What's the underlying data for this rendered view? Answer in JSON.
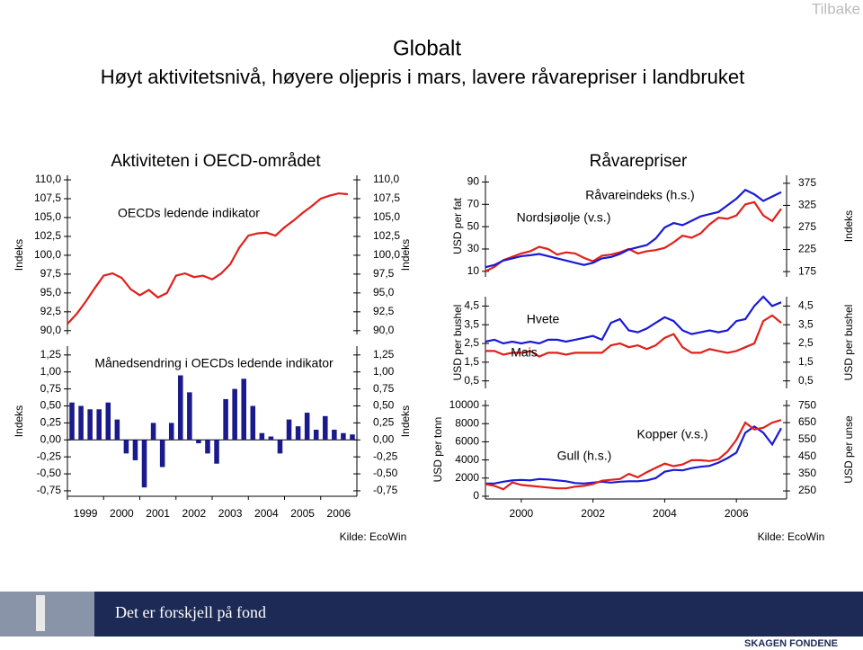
{
  "header": {
    "button": "Tilbake",
    "title": "Globalt",
    "subtitle": "Høyt aktivitetsnivå, høyere oljepris i mars, lavere råvarepriser i landbruket"
  },
  "panels": [
    "Aktiviteten i OECD-området",
    "Råvarepriser"
  ],
  "chart_data": [
    {
      "type": "line",
      "ylabel": "Indeks",
      "y2label": "Indeks",
      "mirror_yticks": true,
      "xlim": [
        1999,
        2007
      ],
      "ylim": [
        89.5,
        110.6
      ],
      "yticks": [
        {
          "value": 90,
          "label": "90,0"
        },
        {
          "value": 92.5,
          "label": "92,5"
        },
        {
          "value": 95,
          "label": "95,0"
        },
        {
          "value": 97.5,
          "label": "97,5"
        },
        {
          "value": 100,
          "label": "100,0"
        },
        {
          "value": 102.5,
          "label": "102,5"
        },
        {
          "value": 105,
          "label": "105,0"
        },
        {
          "value": 107.5,
          "label": "107,5"
        },
        {
          "value": 110,
          "label": "110,0"
        }
      ],
      "x": [
        1999,
        1999.25,
        1999.5,
        1999.75,
        2000,
        2000.25,
        2000.5,
        2000.75,
        2001,
        2001.25,
        2001.5,
        2001.75,
        2002,
        2002.25,
        2002.5,
        2002.75,
        2003,
        2003.25,
        2003.5,
        2003.75,
        2004,
        2004.25,
        2004.5,
        2004.75,
        2005,
        2005.25,
        2005.5,
        2005.75,
        2006,
        2006.25,
        2006.5,
        2006.75
      ],
      "series": [
        {
          "name": "OECDs ledende indikator",
          "color": "#e0201b",
          "values": [
            90.9,
            92.2,
            93.8,
            95.6,
            97.3,
            97.6,
            97.0,
            95.5,
            94.7,
            95.4,
            94.4,
            95.0,
            97.3,
            97.6,
            97.1,
            97.3,
            96.8,
            97.6,
            98.8,
            101.0,
            102.6,
            102.9,
            103.0,
            102.6,
            103.7,
            104.6,
            105.6,
            106.5,
            107.5,
            107.9,
            108.2,
            108.1
          ]
        }
      ]
    },
    {
      "type": "bar",
      "title": "Månedsendring i OECDs ledende indikator",
      "ylabel": "Indeks",
      "y2label": "Indeks",
      "mirror_yticks": true,
      "color": "#1a1a8c",
      "xlim": [
        1999,
        2007
      ],
      "xticks": [
        1999,
        2000,
        2001,
        2002,
        2003,
        2004,
        2005,
        2006
      ],
      "ylim": [
        -0.83,
        1.38
      ],
      "yticks": [
        {
          "value": -0.75,
          "label": "-0,75"
        },
        {
          "value": -0.5,
          "label": "-0,50"
        },
        {
          "value": -0.25,
          "label": "-0,25"
        },
        {
          "value": 0,
          "label": "0,00"
        },
        {
          "value": 0.25,
          "label": "0,25"
        },
        {
          "value": 0.5,
          "label": "0,50"
        },
        {
          "value": 0.75,
          "label": "0,75"
        },
        {
          "value": 1,
          "label": "1,00"
        },
        {
          "value": 1.25,
          "label": "1,25"
        }
      ],
      "x": [
        1999,
        1999.25,
        1999.5,
        1999.75,
        2000,
        2000.25,
        2000.5,
        2000.75,
        2001,
        2001.25,
        2001.5,
        2001.75,
        2002,
        2002.25,
        2002.5,
        2002.75,
        2003,
        2003.25,
        2003.5,
        2003.75,
        2004,
        2004.25,
        2004.5,
        2004.75,
        2005,
        2005.25,
        2005.5,
        2005.75,
        2006,
        2006.25,
        2006.5,
        2006.75
      ],
      "values": [
        0.55,
        0.5,
        0.45,
        0.45,
        0.55,
        0.3,
        -0.2,
        -0.3,
        -0.7,
        0.25,
        -0.4,
        0.25,
        0.95,
        0.7,
        -0.05,
        -0.2,
        -0.35,
        0.6,
        0.75,
        0.9,
        0.5,
        0.1,
        0.05,
        -0.2,
        0.3,
        0.2,
        0.4,
        0.15,
        0.35,
        0.15,
        0.1,
        0.08
      ],
      "source": "Kilde: EcoWin"
    },
    {
      "type": "line",
      "ylabel": "USD per fat",
      "y2label": "Indeks",
      "xlim": [
        1999,
        2007.4
      ],
      "ylim": [
        5,
        96
      ],
      "yticks": [
        10,
        30,
        50,
        70,
        90
      ],
      "y2lim": [
        163,
        393
      ],
      "y2ticks": [
        175,
        225,
        275,
        325,
        375
      ],
      "x": [
        1999,
        1999.25,
        1999.5,
        1999.75,
        2000,
        2000.25,
        2000.5,
        2000.75,
        2001,
        2001.25,
        2001.5,
        2001.75,
        2002,
        2002.25,
        2002.5,
        2002.75,
        2003,
        2003.25,
        2003.5,
        2003.75,
        2004,
        2004.25,
        2004.5,
        2004.75,
        2005,
        2005.25,
        2005.5,
        2005.75,
        2006,
        2006.25,
        2006.5,
        2006.75,
        2007,
        2007.25
      ],
      "series": [
        {
          "name": "Nordsjøolje (v.s.)",
          "color": "#e0201b",
          "values": [
            10,
            14,
            20,
            23,
            26,
            28,
            32,
            30,
            25,
            27,
            26,
            22,
            19,
            24,
            25,
            27,
            30,
            26,
            28,
            29,
            31,
            36,
            42,
            40,
            44,
            52,
            58,
            57,
            60,
            70,
            72,
            60,
            55,
            66
          ]
        },
        {
          "name": "Råvareindeks (h.s.)",
          "color": "#1a1ad6",
          "axis": "y2",
          "values": [
            185,
            190,
            200,
            205,
            210,
            212,
            215,
            210,
            205,
            200,
            195,
            190,
            195,
            205,
            208,
            215,
            225,
            230,
            235,
            250,
            275,
            285,
            280,
            290,
            300,
            305,
            310,
            325,
            340,
            360,
            350,
            335,
            345,
            355
          ]
        }
      ]
    },
    {
      "type": "line",
      "ylabel": "USD per bushel",
      "y2label": "USD per bushel",
      "mirror_yticks": true,
      "xlim": [
        1999,
        2007.4
      ],
      "ylim": [
        0.1,
        5.0
      ],
      "yticks": [
        {
          "value": 0.5,
          "label": "0,5"
        },
        {
          "value": 1.5,
          "label": "1,5"
        },
        {
          "value": 2.5,
          "label": "2,5"
        },
        {
          "value": 3.5,
          "label": "3,5"
        },
        {
          "value": 4.5,
          "label": "4,5"
        }
      ],
      "x": [
        1999,
        1999.25,
        1999.5,
        1999.75,
        2000,
        2000.25,
        2000.5,
        2000.75,
        2001,
        2001.25,
        2001.5,
        2001.75,
        2002,
        2002.25,
        2002.5,
        2002.75,
        2003,
        2003.25,
        2003.5,
        2003.75,
        2004,
        2004.25,
        2004.5,
        2004.75,
        2005,
        2005.25,
        2005.5,
        2005.75,
        2006,
        2006.25,
        2006.5,
        2006.75,
        2007,
        2007.25
      ],
      "series": [
        {
          "name": "Hvete",
          "color": "#1a1ad6",
          "values": [
            2.6,
            2.7,
            2.5,
            2.6,
            2.5,
            2.6,
            2.5,
            2.7,
            2.7,
            2.6,
            2.7,
            2.8,
            2.9,
            2.7,
            3.6,
            3.8,
            3.2,
            3.1,
            3.3,
            3.6,
            3.9,
            3.7,
            3.2,
            3.0,
            3.1,
            3.2,
            3.1,
            3.2,
            3.7,
            3.8,
            4.5,
            5.0,
            4.5,
            4.7
          ]
        },
        {
          "name": "Mais",
          "color": "#e0201b",
          "values": [
            2.1,
            2.1,
            1.9,
            2.0,
            2.0,
            2.1,
            1.8,
            2.0,
            2.0,
            1.9,
            2.0,
            2.0,
            2.0,
            2.0,
            2.4,
            2.5,
            2.3,
            2.4,
            2.2,
            2.4,
            2.8,
            3.0,
            2.3,
            2.0,
            2.0,
            2.2,
            2.1,
            2.0,
            2.1,
            2.3,
            2.5,
            3.7,
            4.0,
            3.6
          ]
        }
      ]
    },
    {
      "type": "line",
      "ylabel": "USD per tonn",
      "y2label": "USD per unse",
      "xlim": [
        1999,
        2007.4
      ],
      "xticks": [
        2000,
        2002,
        2004,
        2006
      ],
      "ylim": [
        -300,
        10600
      ],
      "yticks": [
        0,
        2000,
        4000,
        6000,
        8000,
        10000
      ],
      "y2lim": [
        203,
        782
      ],
      "y2ticks": [
        250,
        350,
        450,
        550,
        650,
        750
      ],
      "x": [
        1999,
        1999.25,
        1999.5,
        1999.75,
        2000,
        2000.25,
        2000.5,
        2000.75,
        2001,
        2001.25,
        2001.5,
        2001.75,
        2002,
        2002.25,
        2002.5,
        2002.75,
        2003,
        2003.25,
        2003.5,
        2003.75,
        2004,
        2004.25,
        2004.5,
        2004.75,
        2005,
        2005.25,
        2005.5,
        2005.75,
        2006,
        2006.25,
        2006.5,
        2006.75,
        2007,
        2007.25
      ],
      "series": [
        {
          "name": "Kopper (v.s.)",
          "color": "#1a1ad6",
          "values": [
            1400,
            1400,
            1600,
            1750,
            1800,
            1750,
            1900,
            1850,
            1750,
            1650,
            1450,
            1400,
            1500,
            1600,
            1500,
            1600,
            1650,
            1650,
            1750,
            2000,
            2700,
            2900,
            2850,
            3100,
            3250,
            3350,
            3700,
            4200,
            4800,
            7000,
            7700,
            7000,
            5700,
            7500
          ]
        },
        {
          "name": "Gull (h.s.)",
          "color": "#e0201b",
          "axis": "y2",
          "values": [
            290,
            280,
            260,
            300,
            285,
            280,
            275,
            270,
            265,
            265,
            275,
            280,
            290,
            310,
            315,
            320,
            350,
            330,
            360,
            385,
            410,
            395,
            405,
            430,
            430,
            425,
            435,
            480,
            550,
            650,
            610,
            620,
            650,
            665
          ]
        }
      ],
      "source": "Kilde: EcoWin"
    }
  ],
  "footer": {
    "slogan": "Det er forskjell på fond",
    "logo": "SKAGEN FONDENE"
  }
}
